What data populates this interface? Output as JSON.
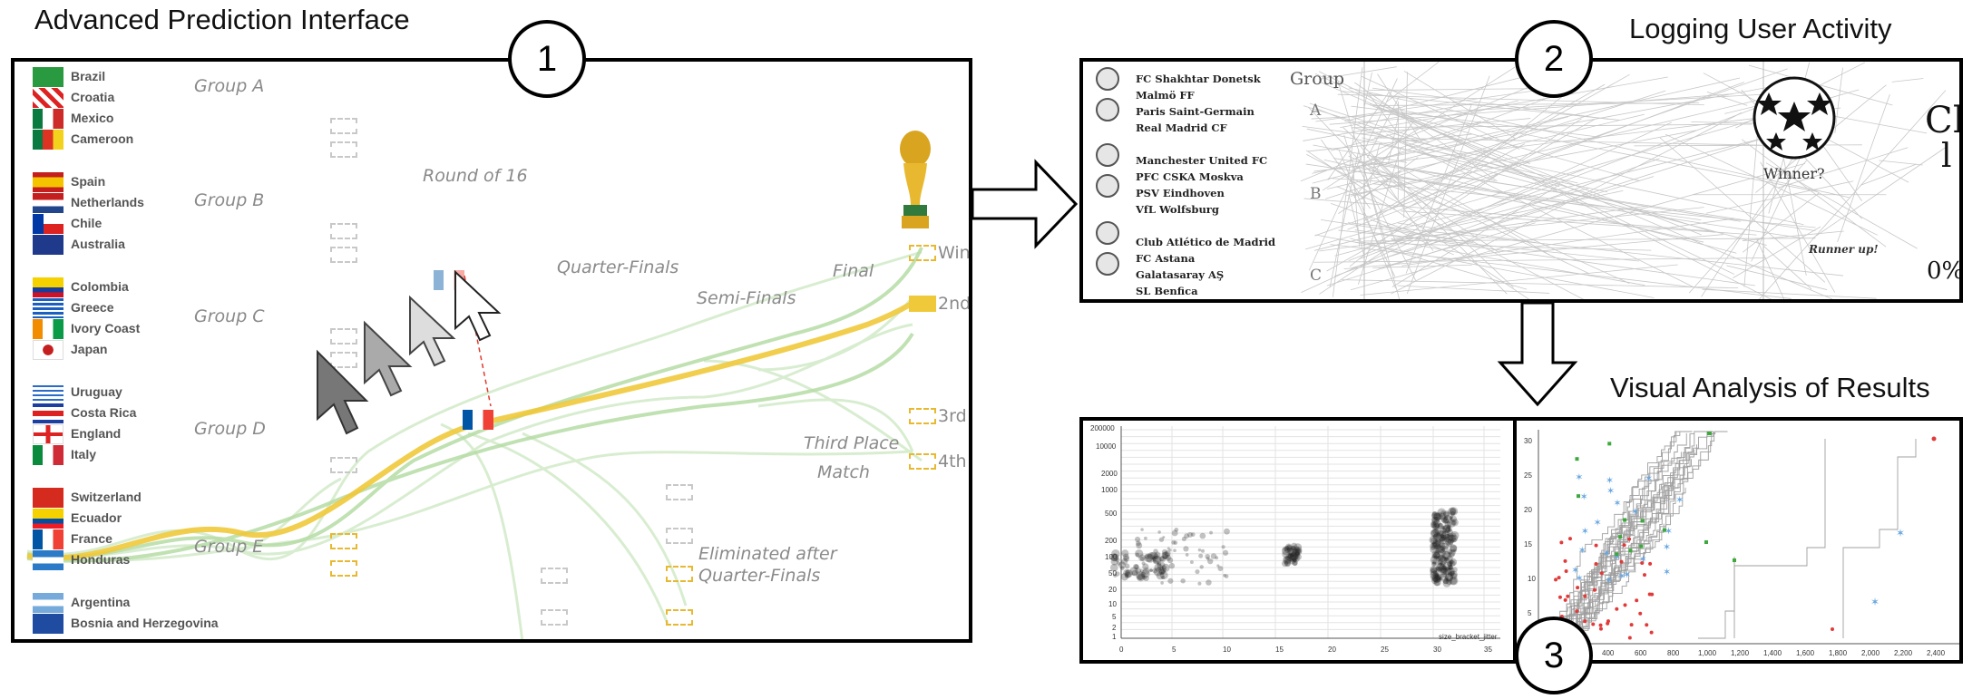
{
  "headings": {
    "advanced_prediction": "Advanced Prediction Interface",
    "logging_activity": "Logging User Activity",
    "visual_analysis": "Visual Analysis of Results"
  },
  "badges": {
    "one": "1",
    "two": "2",
    "three": "3"
  },
  "panel1": {
    "teams": [
      "Brazil",
      "Croatia",
      "Mexico",
      "Cameroon",
      "Spain",
      "Netherlands",
      "Chile",
      "Australia",
      "Colombia",
      "Greece",
      "Ivory Coast",
      "Japan",
      "Uruguay",
      "Costa Rica",
      "England",
      "Italy",
      "Switzerland",
      "Ecuador",
      "France",
      "Honduras",
      "Argentina",
      "Bosnia and Herzegovina"
    ],
    "groups": [
      "Group A",
      "Group B",
      "Group C",
      "Group D",
      "Group E"
    ],
    "stages": {
      "round16": "Round of 16",
      "quarter": "Quarter-Finals",
      "semi": "Semi-Finals",
      "final": "Final",
      "third1": "Third Place",
      "third2": "Match",
      "elim1": "Eliminated after",
      "elim2": "Quarter-Finals"
    },
    "places": {
      "win": "Win",
      "second": "2nd",
      "third": "3rd",
      "fourth": "4th"
    },
    "colors": {
      "gold": "#f0c93a",
      "green": "#8ccf7e"
    }
  },
  "panel2": {
    "clubs": [
      "FC Shakhtar Donetsk",
      "Malmö FF",
      "Paris Saint-Germain",
      "Real Madrid CF",
      "Manchester United FC",
      "PFC CSKA Moskva",
      "PSV Eindhoven",
      "VfL Wolfsburg",
      "Club Atlético de Madrid",
      "FC Astana",
      "Galatasaray AŞ",
      "SL Benfica"
    ],
    "group_header": "Group",
    "group_letters": [
      "A",
      "B",
      "C"
    ],
    "winner": "Winner?",
    "runner_up": "Runner up!",
    "big_text": "Ch",
    "big_text2": "l",
    "percent": "0%"
  },
  "panel3": {
    "left_x_ticks": [
      "0",
      "5",
      "10",
      "15",
      "20",
      "25",
      "30",
      "35"
    ],
    "left_y_ticks": [
      "200000",
      "10000",
      "2000",
      "1000",
      "500",
      "200",
      "100",
      "50",
      "20",
      "10",
      "5",
      "2",
      "1"
    ],
    "left_xlabel": "size_bracket_jitter",
    "right_x_ticks": [
      "200",
      "400",
      "600",
      "800",
      "1,000",
      "1,200",
      "1,400",
      "1,600",
      "1,800",
      "2,000",
      "2,200",
      "2,400"
    ],
    "right_y_ticks": [
      "30",
      "25",
      "20",
      "15",
      "10",
      "5"
    ]
  }
}
